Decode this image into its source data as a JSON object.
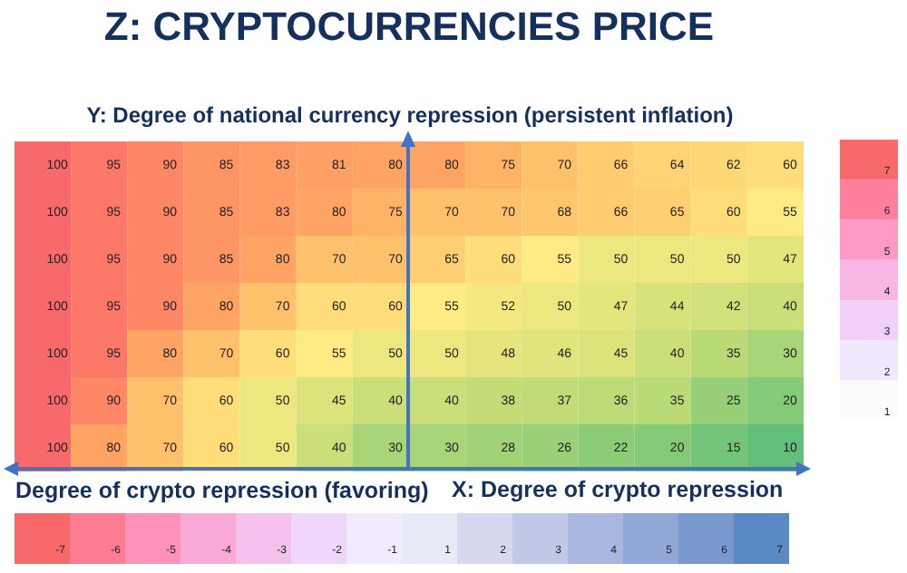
{
  "chart_data": [
    {
      "type": "heatmap",
      "title": "Z: CRYPTOCURRENCIES PRICE",
      "ylabel": "Y: Degree of national currency repression (persistent inflation)",
      "xlabel": "Degree of crypto repression (favoring)",
      "annotations": [
        "X: Degree of crypto repression"
      ],
      "categories": [
        null,
        null,
        null,
        null,
        null,
        null,
        null,
        null,
        null,
        null,
        null,
        null,
        null,
        null
      ],
      "y_categories": [
        null,
        null,
        null,
        null,
        null,
        null,
        null
      ],
      "cells": [
        [
          100,
          95,
          90,
          85,
          83,
          81,
          80,
          80,
          75,
          70,
          66,
          64,
          62,
          60
        ],
        [
          100,
          95,
          90,
          85,
          83,
          80,
          75,
          70,
          70,
          68,
          66,
          65,
          60,
          55
        ],
        [
          100,
          95,
          90,
          85,
          80,
          70,
          70,
          65,
          60,
          55,
          50,
          50,
          50,
          47
        ],
        [
          100,
          95,
          90,
          80,
          70,
          60,
          60,
          55,
          52,
          50,
          47,
          44,
          42,
          40
        ],
        [
          100,
          95,
          80,
          70,
          60,
          55,
          50,
          50,
          48,
          46,
          45,
          40,
          35,
          30
        ],
        [
          100,
          90,
          70,
          60,
          50,
          45,
          40,
          40,
          38,
          37,
          36,
          35,
          25,
          20
        ],
        [
          100,
          80,
          70,
          60,
          50,
          40,
          30,
          30,
          28,
          26,
          22,
          20,
          15,
          10
        ]
      ],
      "data_labels": true
    },
    {
      "type": "heatmap",
      "categories": [
        null
      ],
      "y_categories": [
        null,
        null,
        null,
        null,
        null,
        null,
        null
      ],
      "cells": [
        [
          7
        ],
        [
          6
        ],
        [
          5
        ],
        [
          4
        ],
        [
          3
        ],
        [
          2
        ],
        [
          1
        ]
      ],
      "data_labels": true
    },
    {
      "type": "heatmap",
      "categories": [
        null,
        null,
        null,
        null,
        null,
        null,
        null,
        null,
        null,
        null,
        null,
        null,
        null,
        null
      ],
      "y_categories": [
        null
      ],
      "cells": [
        [
          -7,
          -6,
          -5,
          -4,
          -3,
          -2,
          -1,
          1,
          2,
          3,
          4,
          5,
          6,
          7
        ]
      ],
      "data_labels": true
    }
  ]
}
